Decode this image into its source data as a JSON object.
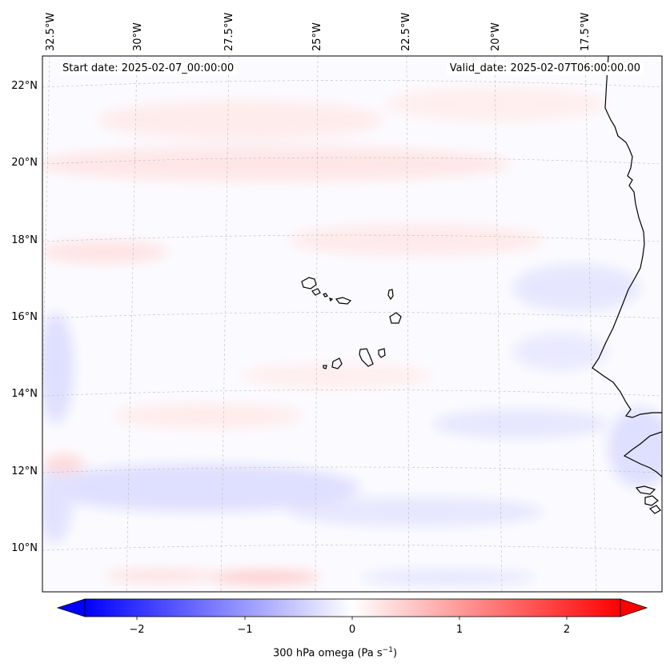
{
  "start_date": "Start date: 2025-02-07_00:00:00",
  "valid_date": "Valid_date: 2025-02-07T06:00:00.00",
  "lon_ticks": [
    "32.5°W",
    "30°W",
    "27.5°W",
    "25°W",
    "22.5°W",
    "20°W",
    "17.5°W"
  ],
  "lat_ticks": [
    "22°N",
    "20°N",
    "18°N",
    "16°N",
    "14°N",
    "12°N",
    "10°N"
  ],
  "colorbar": {
    "title": "300 hPa omega (Pa s",
    "title_superscript": "−1",
    "title_close": ")",
    "ticks": [
      "−2",
      "−1",
      "0",
      "1",
      "2"
    ],
    "cmap": "bwr",
    "range": [
      -2.6,
      2.6
    ],
    "extend": "both"
  },
  "colors": {
    "coastline": "#000000",
    "grid": "#bbbbbb"
  }
}
